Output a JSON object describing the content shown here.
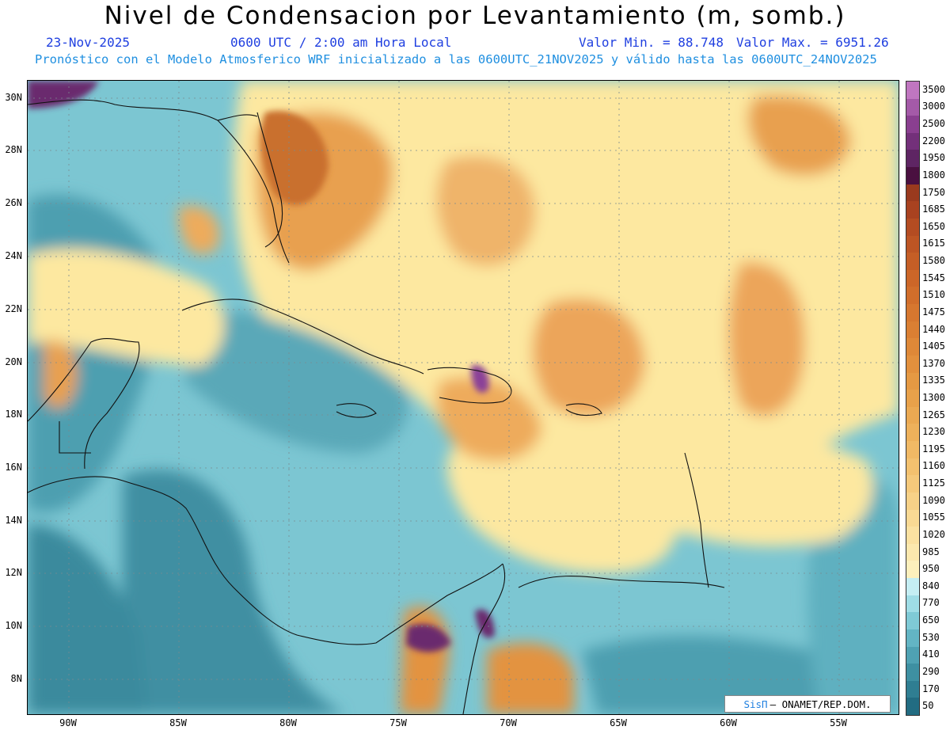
{
  "header": {
    "title": "Nivel de Condensacion por Levantamiento (m, somb.)",
    "date": "23-Nov-2025",
    "time": "0600 UTC / 2:00 am Hora Local",
    "min": "Valor Min. = 88.748",
    "max": "Valor Max. = 6951.26",
    "forecast": "Pronóstico con el Modelo Atmosferico WRF inicializado a las 0600UTC_21NOV2025 y válido hasta las  0600UTC_24NOV2025"
  },
  "map": {
    "lat_labels": [
      "30N",
      "28N",
      "26N",
      "24N",
      "22N",
      "20N",
      "18N",
      "16N",
      "14N",
      "12N",
      "10N",
      "8N"
    ],
    "lon_labels": [
      "90W",
      "85W",
      "80W",
      "75W",
      "70W",
      "65W",
      "60W",
      "55W"
    ],
    "colors": {
      "ocean_low": "#3f95a6",
      "ocean_mid": "#7cc6d2",
      "moist": "#a9e4ec",
      "yellow": "#fde8a0",
      "orange": "#eaa050",
      "dark_orange": "#c9702d",
      "purple": "#6a2a6e"
    }
  },
  "colorbar": {
    "labels": [
      "3500",
      "3000",
      "2500",
      "2200",
      "1950",
      "1800",
      "1750",
      "1685",
      "1650",
      "1615",
      "1580",
      "1545",
      "1510",
      "1475",
      "1440",
      "1405",
      "1370",
      "1335",
      "1300",
      "1265",
      "1230",
      "1195",
      "1160",
      "1125",
      "1090",
      "1055",
      "1020",
      "985",
      "950",
      "840",
      "770",
      "650",
      "530",
      "410",
      "290",
      "170",
      "50"
    ],
    "colors": [
      "#c076c0",
      "#a45aa8",
      "#8a3f90",
      "#73307a",
      "#5e2563",
      "#4a1040",
      "#9a3a1e",
      "#a94220",
      "#b44c22",
      "#bd5524",
      "#c55e26",
      "#cc6628",
      "#d16e2b",
      "#d6772f",
      "#da7f33",
      "#de8838",
      "#e2903d",
      "#e59943",
      "#e8a14a",
      "#eba952",
      "#eeb15b",
      "#f1b965",
      "#f3c16f",
      "#f5c97b",
      "#f7d187",
      "#f9d994",
      "#fbe1a1",
      "#fce8ae",
      "#fdf0bc",
      "#c5eef3",
      "#9fdde6",
      "#7fcad6",
      "#63b5c4",
      "#4fa2b3",
      "#3e90a2",
      "#2f7e92",
      "#226c82"
    ]
  },
  "credit": {
    "brand": "SisΠ",
    "text": "– ONAMET/REP.DOM."
  }
}
